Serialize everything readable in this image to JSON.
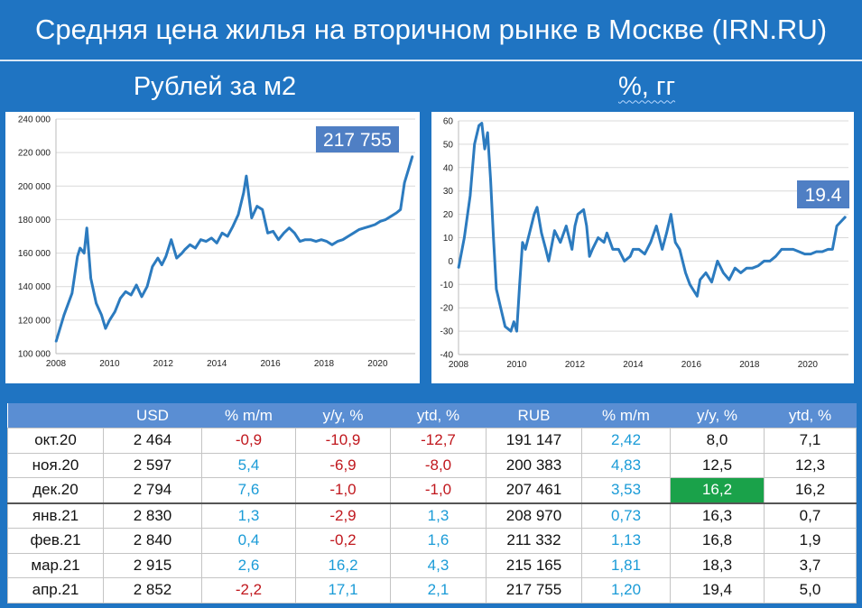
{
  "title": "Средняя цена жилья на вторичном рынке в Москве (IRN.RU)",
  "left_header": "Рублей за м2",
  "right_header": "%, гг",
  "chart_data": [
    {
      "type": "line",
      "callout": "217 755",
      "color": "#2c7bbf",
      "x_ticks": [
        "2008",
        "2010",
        "2012",
        "2014",
        "2016",
        "2018",
        "2020"
      ],
      "y_ticks": [
        "240 000",
        "220 000",
        "200 000",
        "180 000",
        "160 000",
        "140 000",
        "120 000",
        "100 000"
      ],
      "xlim": [
        2008,
        2021.4
      ],
      "ylim": [
        100000,
        240000
      ],
      "x": [
        2008.0,
        2008.3,
        2008.6,
        2008.8,
        2008.9,
        2009.05,
        2009.15,
        2009.3,
        2009.5,
        2009.7,
        2009.85,
        2010.0,
        2010.2,
        2010.4,
        2010.6,
        2010.8,
        2011.0,
        2011.2,
        2011.4,
        2011.6,
        2011.8,
        2011.95,
        2012.1,
        2012.3,
        2012.5,
        2012.7,
        2012.8,
        2013.0,
        2013.2,
        2013.4,
        2013.6,
        2013.8,
        2014.0,
        2014.2,
        2014.4,
        2014.6,
        2014.8,
        2015.0,
        2015.1,
        2015.3,
        2015.5,
        2015.7,
        2015.9,
        2016.1,
        2016.3,
        2016.5,
        2016.7,
        2016.9,
        2017.1,
        2017.3,
        2017.5,
        2017.7,
        2017.9,
        2018.1,
        2018.3,
        2018.5,
        2018.7,
        2018.9,
        2019.1,
        2019.3,
        2019.5,
        2019.7,
        2019.9,
        2020.1,
        2020.3,
        2020.5,
        2020.7,
        2020.85,
        2021.0,
        2021.15,
        2021.3
      ],
      "y": [
        107000,
        123000,
        136000,
        158000,
        163000,
        160000,
        175000,
        145000,
        130000,
        123000,
        115000,
        120000,
        125000,
        133000,
        137000,
        135000,
        141000,
        134000,
        140000,
        152000,
        157000,
        153000,
        158000,
        168000,
        157000,
        160000,
        162000,
        165000,
        163000,
        168000,
        167000,
        169000,
        166000,
        172000,
        170000,
        176000,
        183000,
        196000,
        206000,
        181000,
        188000,
        186000,
        172000,
        173000,
        168000,
        172000,
        175000,
        172000,
        167000,
        168000,
        168000,
        167000,
        168000,
        167000,
        165000,
        167000,
        168000,
        170000,
        172000,
        174000,
        175000,
        176000,
        177000,
        179000,
        180000,
        182000,
        184000,
        186000,
        202000,
        210000,
        218000
      ]
    },
    {
      "type": "line",
      "callout": "19.4",
      "color": "#2c7bbf",
      "x_ticks": [
        "2008",
        "2010",
        "2012",
        "2014",
        "2016",
        "2018",
        "2020"
      ],
      "y_ticks": [
        "60",
        "50",
        "40",
        "30",
        "20",
        "10",
        "0",
        "-10",
        "-20",
        "-30",
        "-40"
      ],
      "xlim": [
        2008,
        2021.4
      ],
      "ylim": [
        -40,
        60
      ],
      "x": [
        2008.0,
        2008.2,
        2008.4,
        2008.55,
        2008.7,
        2008.8,
        2008.9,
        2009.0,
        2009.1,
        2009.2,
        2009.3,
        2009.45,
        2009.6,
        2009.8,
        2009.9,
        2010.0,
        2010.1,
        2010.2,
        2010.3,
        2010.5,
        2010.6,
        2010.7,
        2010.85,
        2011.0,
        2011.1,
        2011.3,
        2011.5,
        2011.7,
        2011.9,
        2012.0,
        2012.1,
        2012.3,
        2012.4,
        2012.5,
        2012.6,
        2012.8,
        2013.0,
        2013.1,
        2013.3,
        2013.5,
        2013.7,
        2013.9,
        2014.0,
        2014.2,
        2014.4,
        2014.6,
        2014.8,
        2015.0,
        2015.15,
        2015.3,
        2015.45,
        2015.6,
        2015.8,
        2015.95,
        2016.05,
        2016.2,
        2016.3,
        2016.5,
        2016.7,
        2016.9,
        2017.1,
        2017.3,
        2017.5,
        2017.7,
        2017.9,
        2018.1,
        2018.3,
        2018.5,
        2018.7,
        2018.9,
        2019.1,
        2019.3,
        2019.5,
        2019.7,
        2019.9,
        2020.1,
        2020.3,
        2020.5,
        2020.7,
        2020.85,
        2021.0,
        2021.15,
        2021.3
      ],
      "y": [
        -3,
        10,
        28,
        50,
        58,
        59,
        48,
        55,
        35,
        10,
        -12,
        -20,
        -28,
        -30,
        -26,
        -30,
        -10,
        8,
        5,
        15,
        20,
        23,
        12,
        5,
        0,
        13,
        8,
        15,
        5,
        15,
        20,
        22,
        15,
        2,
        5,
        10,
        8,
        12,
        5,
        5,
        0,
        2,
        5,
        5,
        3,
        8,
        15,
        5,
        12,
        20,
        8,
        5,
        -5,
        -10,
        -12,
        -15,
        -8,
        -5,
        -9,
        0,
        -5,
        -8,
        -3,
        -5,
        -3,
        -3,
        -2,
        0,
        0,
        2,
        5,
        5,
        5,
        4,
        3,
        3,
        4,
        4,
        5,
        5,
        15,
        17,
        19
      ]
    }
  ],
  "table": {
    "headers": [
      "",
      "USD",
      "% m/m",
      "y/y, %",
      "ytd, %",
      "RUB",
      "% m/m",
      "y/y, %",
      "ytd, %"
    ],
    "rows": [
      [
        "окт.20",
        "2 464",
        "-0,9",
        "-10,9",
        "-12,7",
        "191 147",
        "2,42",
        "8,0",
        "7,1"
      ],
      [
        "ноя.20",
        "2 597",
        "5,4",
        "-6,9",
        "-8,0",
        "200 383",
        "4,83",
        "12,5",
        "12,3"
      ],
      [
        "дек.20",
        "2 794",
        "7,6",
        "-1,0",
        "-1,0",
        "207 461",
        "3,53",
        "16,2",
        "16,2"
      ],
      [
        "янв.21",
        "2 830",
        "1,3",
        "-2,9",
        "1,3",
        "208 970",
        "0,73",
        "16,3",
        "0,7"
      ],
      [
        "фев.21",
        "2 840",
        "0,4",
        "-0,2",
        "1,6",
        "211 332",
        "1,13",
        "16,8",
        "1,9"
      ],
      [
        "мар.21",
        "2 915",
        "2,6",
        "16,2",
        "4,3",
        "215 165",
        "1,81",
        "18,3",
        "3,7"
      ],
      [
        "апр.21",
        "2 852",
        "-2,2",
        "17,1",
        "2,1",
        "217 755",
        "1,20",
        "19,4",
        "5,0"
      ]
    ],
    "highlight_cell": "дек.20 / RUB y/y, %",
    "colors": {
      "negative": "#c0171d",
      "positive": "#1a9bd7",
      "highlight": "#1aa24a"
    }
  }
}
